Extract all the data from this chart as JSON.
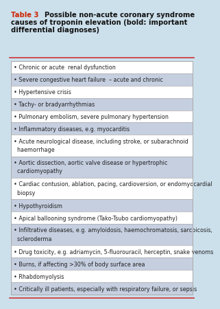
{
  "bg_color": "#cce0ec",
  "table_bg": "#ffffff",
  "title_red": "#cc2200",
  "title_black": "#111111",
  "row_shade_color": "#c5cfe0",
  "border_color": "#aaaaaa",
  "red_line_color": "#cc3333",
  "text_color": "#222222",
  "font_size": 5.8,
  "title_font_size": 7.2,
  "rows": [
    {
      "lines": [
        "• Chronic or acute  renal dysfunction"
      ],
      "shaded": false
    },
    {
      "lines": [
        "• Severe congestive heart failure  – acute and chronic"
      ],
      "shaded": true
    },
    {
      "lines": [
        "• Hypertensive crisis"
      ],
      "shaded": false
    },
    {
      "lines": [
        "• Tachy- or bradyarrhythmias"
      ],
      "shaded": true
    },
    {
      "lines": [
        "• Pulmonary embolism, severe pulmonary hypertension"
      ],
      "shaded": false
    },
    {
      "lines": [
        "• Inflammatory diseases, e.g. myocarditis"
      ],
      "shaded": true
    },
    {
      "lines": [
        "• Acute neurological disease, including stroke, or subarachnoid",
        "  haemorrhage"
      ],
      "shaded": false
    },
    {
      "lines": [
        "• Aortic dissection, aortic valve disease or hypertrophic",
        "  cardiomyopathy"
      ],
      "shaded": true
    },
    {
      "lines": [
        "• Cardiac contusion, ablation, pacing, cardioversion, or endomyocardial",
        "  biopsy"
      ],
      "shaded": false
    },
    {
      "lines": [
        "• Hypothyroidism"
      ],
      "shaded": true
    },
    {
      "lines": [
        "• Apical ballooning syndrome (Tako-Tsubo cardiomyopathy)"
      ],
      "shaded": false
    },
    {
      "lines": [
        "• Infiltrative diseases, e.g. amyloidosis, haemochromatosis, sarcoicosis,",
        "  scleroderma"
      ],
      "shaded": true
    },
    {
      "lines": [
        "• Drug toxicity, e.g. adriamycin, 5-fluorouracil, herceptin, snake venoms"
      ],
      "shaded": false
    },
    {
      "lines": [
        "• Burns, if affecting >30% of body surface area"
      ],
      "shaded": true
    },
    {
      "lines": [
        "• Rhabdomyolysis"
      ],
      "shaded": false
    },
    {
      "lines": [
        "• Critically ill patients, especially with respiratory failure, or sepsis"
      ],
      "shaded": true
    }
  ]
}
